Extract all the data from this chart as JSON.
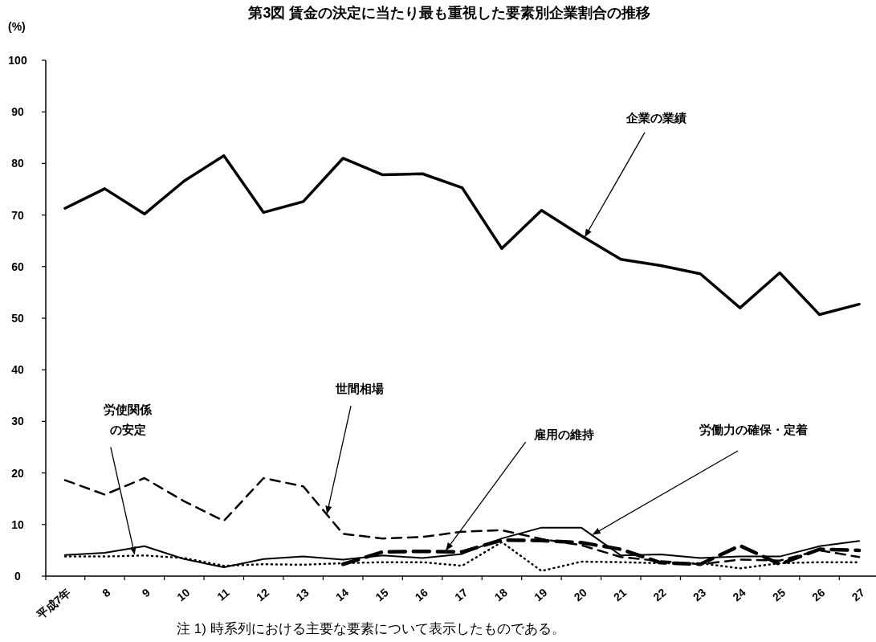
{
  "chart_data": {
    "type": "line",
    "title": "第3図  賃金の決定に当たり最も重視した要素別企業割合の推移",
    "ylabel": "(%)",
    "categories": [
      "平成7年",
      "8",
      "9",
      "10",
      "11",
      "12",
      "13",
      "14",
      "15",
      "16",
      "17",
      "18",
      "19",
      "20",
      "21",
      "22",
      "23",
      "24",
      "25",
      "26",
      "27"
    ],
    "ylim": [
      0,
      100
    ],
    "yticks": [
      0,
      10,
      20,
      30,
      40,
      50,
      60,
      70,
      80,
      90,
      100
    ],
    "grid": false,
    "marker": "none",
    "series": [
      {
        "name": "企業の業績",
        "color": "#000000",
        "line_style": "solid",
        "values": [
          71.3,
          75.1,
          70.2,
          76.6,
          81.5,
          70.5,
          72.6,
          81.0,
          77.8,
          78.0,
          75.3,
          63.5,
          70.9,
          66.0,
          61.4,
          60.2,
          58.6,
          52.0,
          58.8,
          50.7,
          52.7
        ]
      },
      {
        "name": "労使関係の安定",
        "color": "#000000",
        "line_style": "dotted",
        "values": [
          3.8,
          3.8,
          4.0,
          3.5,
          2.0,
          2.3,
          2.2,
          2.5,
          2.7,
          2.7,
          2.0,
          6.6,
          1.0,
          2.8,
          2.7,
          2.5,
          2.5,
          1.5,
          2.5,
          2.7,
          2.7
        ]
      },
      {
        "name": "世間相場",
        "color": "#000000",
        "line_style": "dashed",
        "values": [
          18.6,
          15.8,
          19.0,
          14.5,
          10.7,
          19.0,
          17.4,
          8.2,
          7.3,
          7.6,
          8.6,
          8.9,
          7.2,
          6.0,
          3.7,
          2.9,
          2.3,
          3.2,
          3.0,
          5.0,
          3.7
        ]
      },
      {
        "name": "雇用の維持",
        "color": "#000000",
        "line_style": "dashed",
        "values": [
          null,
          null,
          null,
          null,
          null,
          null,
          null,
          2.3,
          4.7,
          4.8,
          4.7,
          7.0,
          6.9,
          6.5,
          5.2,
          2.6,
          2.3,
          5.9,
          2.3,
          5.2,
          5.0
        ]
      },
      {
        "name": "労働力の確保・定着",
        "color": "#000000",
        "line_style": "solid",
        "values": [
          4.1,
          4.5,
          5.8,
          3.3,
          1.7,
          3.3,
          3.8,
          3.2,
          4.0,
          3.5,
          4.3,
          7.3,
          9.4,
          9.4,
          4.0,
          4.2,
          3.5,
          3.8,
          3.8,
          5.8,
          6.8
        ]
      }
    ],
    "annotations": [
      "注  1)  時系列における主要な要素について表示したものである。"
    ]
  }
}
